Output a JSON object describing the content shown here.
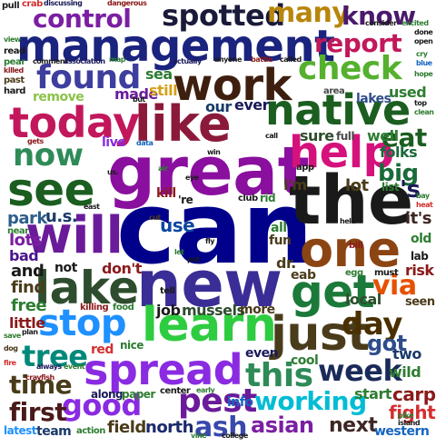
{
  "words": [
    {
      "text": "can",
      "color": "#00008b"
    },
    {
      "text": "great",
      "color": "#8a0f9e"
    },
    {
      "text": "new",
      "color": "#3a2d96"
    },
    {
      "text": "the",
      "color": "#1a1a1a"
    },
    {
      "text": "management",
      "color": "#1a237e"
    },
    {
      "text": "work",
      "color": "#3e1f0f"
    },
    {
      "text": "like",
      "color": "#8b1a3a"
    },
    {
      "text": "native",
      "color": "#1b5e20"
    },
    {
      "text": "help",
      "color": "#d5127c"
    },
    {
      "text": "today",
      "color": "#c2185b"
    },
    {
      "text": "see",
      "color": "#1b5e20"
    },
    {
      "text": "will",
      "color": "#6a1b9a"
    },
    {
      "text": "one",
      "color": "#8b4513"
    },
    {
      "text": "lake",
      "color": "#2e4d2e"
    },
    {
      "text": "get",
      "color": "#1b7a3a"
    },
    {
      "text": "learn",
      "color": "#2ecc40"
    },
    {
      "text": "just",
      "color": "#4a3c1a"
    },
    {
      "text": "spread",
      "color": "#8a2be2"
    },
    {
      "text": "stop",
      "color": "#1e90ff"
    },
    {
      "text": "check",
      "color": "#55b02e"
    },
    {
      "text": "found",
      "color": "#3e3e9e"
    },
    {
      "text": "control",
      "color": "#7b1fa2"
    },
    {
      "text": "spotted",
      "color": "#1a1a3a"
    },
    {
      "text": "many",
      "color": "#b8860b"
    },
    {
      "text": "know",
      "color": "#4a1a6a"
    },
    {
      "text": "report",
      "color": "#c2185b"
    },
    {
      "text": "this",
      "color": "#2e8b57"
    },
    {
      "text": "week",
      "color": "#1a2a5a"
    },
    {
      "text": "day",
      "color": "#4a3000"
    },
    {
      "text": "via",
      "color": "#e65100"
    },
    {
      "text": "now",
      "color": "#2e8b57"
    },
    {
      "text": "pest",
      "color": "#6a1b9a"
    },
    {
      "text": "good",
      "color": "#8a2be2"
    },
    {
      "text": "working",
      "color": "#00bcd4"
    },
    {
      "text": "ash",
      "color": "#3949ab"
    },
    {
      "text": "tree",
      "color": "#00897b"
    },
    {
      "text": "time",
      "color": "#4a3c1a"
    },
    {
      "text": "first",
      "color": "#4a1a1a"
    },
    {
      "text": "eat",
      "color": "#1b5e20"
    },
    {
      "text": "big",
      "color": "#1a6a3a"
    },
    {
      "text": "got",
      "color": "#2e4d8b"
    },
    {
      "text": "asian",
      "color": "#7b1fa2"
    },
    {
      "text": "next",
      "color": "#3e2723"
    },
    {
      "text": "carp",
      "color": "#8b1a1a"
    },
    {
      "text": "fight",
      "color": "#d32f2f"
    },
    {
      "text": "and",
      "color": "#1a1a1a"
    },
    {
      "text": "find",
      "color": "#4a3c1a"
    },
    {
      "text": "free",
      "color": "#2e7d32"
    },
    {
      "text": "lots",
      "color": "#7b1fa2"
    },
    {
      "text": "bad",
      "color": "#4a148c"
    },
    {
      "text": "park",
      "color": "#2e5d8b"
    },
    {
      "text": "u.s.",
      "color": "#1a3a6a"
    },
    {
      "text": "start",
      "color": "#2e7d32"
    },
    {
      "text": "field",
      "color": "#4a3c1a"
    },
    {
      "text": "north",
      "color": "#1a2a6a"
    },
    {
      "text": "western",
      "color": "#1565c0"
    },
    {
      "text": "it's",
      "color": "#3e2723"
    },
    {
      "text": "lot",
      "color": "#4a3c1a"
    },
    {
      "text": "sure",
      "color": "#2e4d2e"
    },
    {
      "text": "full",
      "color": "#4a4a4a"
    },
    {
      "text": "well",
      "color": "#2e7d32"
    },
    {
      "text": "folks",
      "color": "#1a6a3a"
    },
    {
      "text": "made",
      "color": "#6a1b9a"
    },
    {
      "text": "still",
      "color": "#d4a017"
    },
    {
      "text": "our",
      "color": "#1a3a6a"
    },
    {
      "text": "ever",
      "color": "#1a1a5a"
    },
    {
      "text": "sea",
      "color": "#2e7d32"
    },
    {
      "text": "live",
      "color": "#8a2be2"
    },
    {
      "text": "remove",
      "color": "#8bc34a"
    },
    {
      "text": "lakes",
      "color": "#2e4d8b"
    },
    {
      "text": "used",
      "color": "#2e7d32"
    },
    {
      "text": "area",
      "color": "#4a4a4a"
    },
    {
      "text": "use",
      "color": "#0d47a1"
    },
    {
      "text": "dr.",
      "color": "#4a3c1a"
    },
    {
      "text": "don't",
      "color": "#8b1a1a"
    },
    {
      "text": "not",
      "color": "#1a1a1a"
    },
    {
      "text": "risk",
      "color": "#8b1a1a"
    },
    {
      "text": "lab",
      "color": "#1a1a1a"
    },
    {
      "text": "eab",
      "color": "#4a3c1a"
    },
    {
      "text": "old",
      "color": "#2e7d32"
    },
    {
      "text": "local",
      "color": "#2e4d2e"
    },
    {
      "text": "seen",
      "color": "#4a3c1a"
    },
    {
      "text": "little",
      "color": "#8b1a1a"
    },
    {
      "text": "mussels",
      "color": "#2e4d2e"
    },
    {
      "text": "more",
      "color": "#4a3c1a"
    },
    {
      "text": "job",
      "color": "#1a1a1a"
    },
    {
      "text": "two",
      "color": "#1a3a6a"
    },
    {
      "text": "wild",
      "color": "#2e7d32"
    },
    {
      "text": "even",
      "color": "#1a1a5a"
    },
    {
      "text": "cool",
      "color": "#2e7d32"
    },
    {
      "text": "red",
      "color": "#d32f2f"
    },
    {
      "text": "nice",
      "color": "#2e7d32"
    },
    {
      "text": "info",
      "color": "#1565c0"
    },
    {
      "text": "team",
      "color": "#1a3a6a"
    },
    {
      "text": "latest",
      "color": "#1e90ff"
    },
    {
      "text": "along",
      "color": "#1a1a5a"
    },
    {
      "text": "paper",
      "color": "#2e7d32"
    },
    {
      "text": "center",
      "color": "#1a1a1a"
    },
    {
      "text": "action",
      "color": "#2e7d32"
    },
    {
      "text": "fun",
      "color": "#4a3c1a"
    },
    {
      "text": "all",
      "color": "#2e7d32"
    },
    {
      "text": "app",
      "color": "#1a1a1a"
    },
    {
      "text": "'s",
      "color": "#1a1a5a"
    },
    {
      "text": "i'm",
      "color": "#4a3c1a"
    },
    {
      "text": "kill",
      "color": "#8b1a1a"
    },
    {
      "text": "'re",
      "color": "#1a1a1a"
    },
    {
      "text": "rid",
      "color": "#2e7d32"
    },
    {
      "text": "club",
      "color": "#1a1a1a"
    },
    {
      "text": "list",
      "color": "#2e7d32"
    },
    {
      "text": "bill",
      "color": "#8b1a1a"
    },
    {
      "text": "egg",
      "color": "#2e7d32"
    },
    {
      "text": "must",
      "color": "#1a1a1a"
    },
    {
      "text": "killing",
      "color": "#8b1a1a"
    },
    {
      "text": "food",
      "color": "#2e7d32"
    },
    {
      "text": "tell",
      "color": "#1a1a1a"
    },
    {
      "text": "near",
      "color": "#2e7d32"
    },
    {
      "text": "plan",
      "color": "#1a1a1a"
    },
    {
      "text": "save",
      "color": "#2e7d32"
    },
    {
      "text": "dog",
      "color": "#4a3c1a"
    },
    {
      "text": "fire",
      "color": "#d32f2f"
    },
    {
      "text": "crayfish",
      "color": "#8b1a1a"
    },
    {
      "text": "always",
      "color": "#1a1a5a"
    },
    {
      "text": "event",
      "color": "#2e7d32"
    },
    {
      "text": "pike",
      "color": "#2e7d32"
    },
    {
      "text": "island",
      "color": "#1a1a1a"
    },
    {
      "text": "vine",
      "color": "#2e7d32"
    },
    {
      "text": "college",
      "color": "#1a1a1a"
    },
    {
      "text": "early",
      "color": "#2e7d32"
    },
    {
      "text": "pull",
      "color": "#1a1a1a"
    },
    {
      "text": "crab",
      "color": "#d32f2f"
    },
    {
      "text": "discussing",
      "color": "#1a1a5a"
    },
    {
      "text": "dangerous",
      "color": "#8b1a1a"
    },
    {
      "text": "consider",
      "color": "#1a1a1a"
    },
    {
      "text": "excited",
      "color": "#2e7d32"
    },
    {
      "text": "done",
      "color": "#1a1a1a"
    },
    {
      "text": "open",
      "color": "#1a1a1a"
    },
    {
      "text": "read",
      "color": "#1a1a1a"
    },
    {
      "text": "view",
      "color": "#2e7d32"
    },
    {
      "text": "pear",
      "color": "#2e7d32"
    },
    {
      "text": "killed",
      "color": "#8b1a1a"
    },
    {
      "text": "comment",
      "color": "#1a1a1a"
    },
    {
      "text": "association",
      "color": "#1a1a5a"
    },
    {
      "text": "map",
      "color": "#2e7d32"
    },
    {
      "text": "actually",
      "color": "#1a1a5a"
    },
    {
      "text": "anyone",
      "color": "#1a1a1a"
    },
    {
      "text": "battle",
      "color": "#8b1a1a"
    },
    {
      "text": "called",
      "color": "#1a1a1a"
    },
    {
      "text": "cry",
      "color": "#2e7d32"
    },
    {
      "text": "blue",
      "color": "#1565c0"
    },
    {
      "text": "past",
      "color": "#4a3c1a"
    },
    {
      "text": "hard",
      "color": "#1a1a1a"
    },
    {
      "text": "hope",
      "color": "#2e7d32"
    },
    {
      "text": "but",
      "color": "#1a1a1a"
    },
    {
      "text": "top",
      "color": "#1a1a1a"
    },
    {
      "text": "clean",
      "color": "#2e7d32"
    },
    {
      "text": "call",
      "color": "#1a1a1a"
    },
    {
      "text": "data",
      "color": "#1565c0"
    },
    {
      "text": "us.",
      "color": "#1a1a1a"
    },
    {
      "text": "air",
      "color": "#2e7d32"
    },
    {
      "text": "win",
      "color": "#1a1a1a"
    },
    {
      "text": "cut",
      "color": "#4a3c1a"
    },
    {
      "text": "fly",
      "color": "#1a1a1a"
    },
    {
      "text": "let",
      "color": "#2e7d32"
    },
    {
      "text": "put",
      "color": "#1a1a1a"
    },
    {
      "text": "eye",
      "color": "#1a1a1a"
    },
    {
      "text": "held",
      "color": "#1a1a1a"
    },
    {
      "text": "bay",
      "color": "#2e7d32"
    },
    {
      "text": "heat",
      "color": "#d32f2f"
    },
    {
      "text": "gets",
      "color": "#8b1a1a"
    },
    {
      "text": "east",
      "color": "#1a1a1a"
    }
  ]
}
